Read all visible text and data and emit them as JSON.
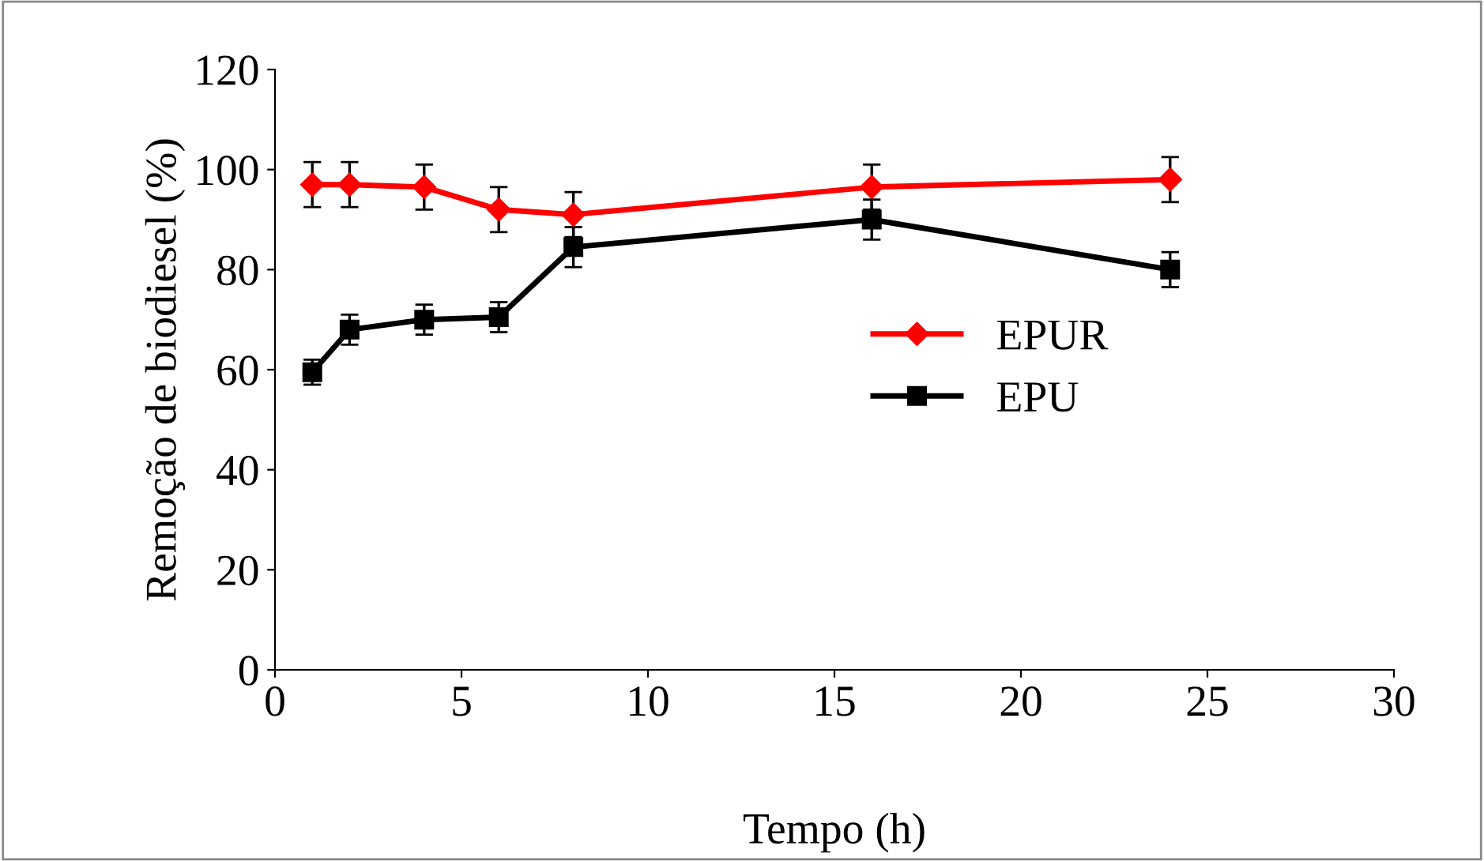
{
  "chart_data": {
    "type": "line",
    "xlabel": "Tempo (h)",
    "ylabel": "Remoção de biodiesel (%)",
    "x": [
      1,
      2,
      4,
      6,
      8,
      16,
      24
    ],
    "series": [
      {
        "name": "EPUR",
        "color": "#ff0000",
        "marker": "diamond",
        "values": [
          97,
          97,
          96.5,
          92,
          91,
          96.5,
          98
        ],
        "errors": [
          4.5,
          4.5,
          4.5,
          4.5,
          4.5,
          4.5,
          4.5
        ]
      },
      {
        "name": "EPU",
        "color": "#000000",
        "marker": "square",
        "values": [
          59.5,
          68,
          70,
          70.5,
          84.5,
          90,
          80
        ],
        "errors": [
          2.5,
          3,
          3,
          3,
          4,
          4,
          3.5
        ]
      }
    ],
    "xlim": [
      0,
      30
    ],
    "xticks": [
      0,
      5,
      10,
      15,
      20,
      25,
      30
    ],
    "ylim": [
      0,
      120
    ],
    "yticks": [
      0,
      20,
      40,
      60,
      80,
      100,
      120
    ],
    "grid": false,
    "legend": "right"
  }
}
